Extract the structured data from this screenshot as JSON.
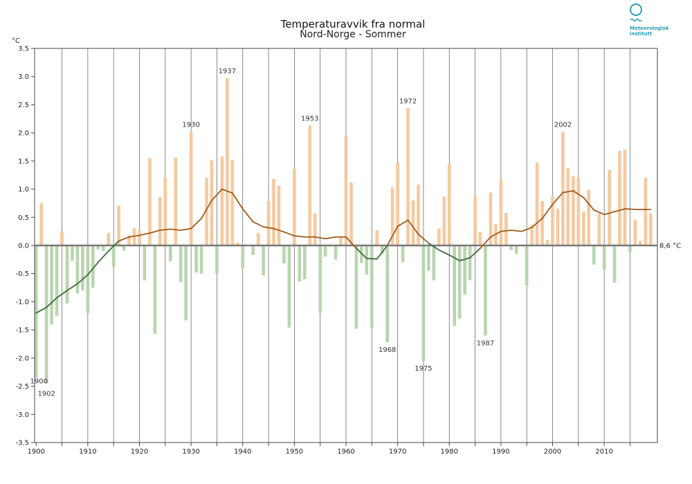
{
  "logo": {
    "line1": "Meteorologisk",
    "line2": "institutt",
    "color": "#2a9bb7"
  },
  "chart_data": {
    "type": "bar",
    "title": "Temperaturavvik fra normal",
    "subtitle": "Nord-Norge - Sommer",
    "ylabel": "°C",
    "baseline_label": "8,6 °C",
    "ylim": [
      -3.5,
      3.5
    ],
    "yticks": [
      3.5,
      3.0,
      2.5,
      2.0,
      1.5,
      1.0,
      0.5,
      0.0,
      -0.5,
      -1.0,
      -1.5,
      -2.0,
      -2.5,
      -3.0,
      -3.5
    ],
    "ytick_labels": [
      "3.5",
      "3.0",
      "2.5",
      "2.0",
      "1.5",
      "1.0",
      "0.5",
      "0.0",
      "-0.5",
      "-1.0",
      "-1.5",
      "-2.0",
      "-2.5",
      "-3.0",
      "-3.5"
    ],
    "xlim": [
      1899.7,
      2020.3
    ],
    "xticks": [
      1900,
      1910,
      1920,
      1930,
      1940,
      1950,
      1960,
      1970,
      1980,
      1990,
      2000,
      2010
    ],
    "xtick_labels": [
      "1900",
      "1910",
      "1920",
      "1930",
      "1940",
      "1950",
      "1960",
      "1970",
      "1980",
      "1990",
      "2000",
      "2010"
    ],
    "grid": "vertical every 5 years",
    "colors": {
      "positive": "#f5c9a0",
      "negative": "#b9d5b0",
      "smooth_positive": "#9e5a1a",
      "smooth_negative": "#3d6b35",
      "zero_line": "#777777"
    },
    "years": [
      1900,
      1901,
      1902,
      1903,
      1904,
      1905,
      1906,
      1907,
      1908,
      1909,
      1910,
      1911,
      1912,
      1913,
      1914,
      1915,
      1916,
      1917,
      1918,
      1919,
      1920,
      1921,
      1922,
      1923,
      1924,
      1925,
      1926,
      1927,
      1928,
      1929,
      1930,
      1931,
      1932,
      1933,
      1934,
      1935,
      1936,
      1937,
      1938,
      1939,
      1940,
      1941,
      1942,
      1943,
      1944,
      1945,
      1946,
      1947,
      1948,
      1949,
      1950,
      1951,
      1952,
      1953,
      1954,
      1955,
      1956,
      1957,
      1958,
      1959,
      1960,
      1961,
      1962,
      1963,
      1964,
      1965,
      1966,
      1967,
      1968,
      1969,
      1970,
      1971,
      1972,
      1973,
      1974,
      1975,
      1976,
      1977,
      1978,
      1979,
      1980,
      1981,
      1982,
      1983,
      1984,
      1985,
      1986,
      1987,
      1988,
      1989,
      1990,
      1991,
      1992,
      1993,
      1994,
      1995,
      1996,
      1997,
      1998,
      1999,
      2000,
      2001,
      2002,
      2003,
      2004,
      2005,
      2006,
      2007,
      2008,
      2009,
      2010,
      2011,
      2012,
      2013,
      2014,
      2015,
      2016,
      2017,
      2018,
      2019
    ],
    "values": [
      -2.35,
      0.75,
      -2.45,
      -1.4,
      -1.25,
      0.25,
      -1.03,
      -0.27,
      -0.85,
      -0.8,
      -1.2,
      -0.75,
      -0.07,
      -0.1,
      0.22,
      -0.38,
      0.71,
      -0.09,
      0.18,
      0.31,
      0.27,
      -0.62,
      1.55,
      -1.57,
      0.86,
      1.2,
      -0.28,
      1.56,
      -0.65,
      -1.33,
      2.02,
      -0.48,
      -0.5,
      1.2,
      1.51,
      -0.5,
      1.58,
      2.97,
      1.52,
      0.05,
      -0.4,
      0.0,
      -0.17,
      0.22,
      -0.53,
      0.79,
      1.18,
      1.06,
      -0.32,
      -1.46,
      1.36,
      -0.64,
      -0.6,
      2.13,
      0.57,
      -1.19,
      -0.2,
      0.0,
      -0.25,
      0.16,
      1.95,
      1.12,
      -1.48,
      -0.31,
      -0.52,
      -1.46,
      0.27,
      -0.15,
      -1.72,
      1.03,
      1.48,
      -0.3,
      2.44,
      0.8,
      1.08,
      -2.05,
      -0.45,
      -0.62,
      0.3,
      0.87,
      1.45,
      -1.43,
      -1.3,
      -0.87,
      -0.62,
      0.87,
      0.24,
      -1.6,
      0.94,
      0.38,
      1.17,
      0.58,
      -0.08,
      -0.15,
      0.0,
      -0.71,
      0.37,
      1.47,
      0.79,
      0.1,
      0.88,
      0.65,
      2.02,
      1.37,
      1.23,
      1.21,
      0.6,
      0.99,
      -0.34,
      0.57,
      -0.42,
      1.34,
      -0.66,
      1.68,
      1.7,
      -0.12,
      0.46,
      0.08,
      1.2,
      0.57
    ],
    "smooth": {
      "years": [
        1900,
        1902,
        1904,
        1906,
        1908,
        1910,
        1912,
        1914,
        1916,
        1918,
        1920,
        1922,
        1924,
        1926,
        1928,
        1930,
        1932,
        1934,
        1936,
        1938,
        1940,
        1942,
        1944,
        1946,
        1948,
        1950,
        1952,
        1954,
        1956,
        1958,
        1960,
        1962,
        1964,
        1966,
        1968,
        1970,
        1972,
        1974,
        1976,
        1978,
        1980,
        1982,
        1984,
        1986,
        1988,
        1990,
        1992,
        1994,
        1996,
        1998,
        2000,
        2002,
        2004,
        2006,
        2008,
        2010,
        2012,
        2014,
        2016,
        2019
      ],
      "values": [
        -1.2,
        -1.1,
        -0.93,
        -0.8,
        -0.68,
        -0.52,
        -0.3,
        -0.1,
        0.08,
        0.15,
        0.18,
        0.22,
        0.27,
        0.29,
        0.27,
        0.3,
        0.48,
        0.8,
        1.0,
        0.93,
        0.65,
        0.42,
        0.33,
        0.3,
        0.24,
        0.17,
        0.15,
        0.15,
        0.12,
        0.15,
        0.15,
        -0.05,
        -0.23,
        -0.24,
        0.0,
        0.34,
        0.45,
        0.2,
        0.04,
        -0.08,
        -0.17,
        -0.27,
        -0.22,
        -0.05,
        0.15,
        0.25,
        0.27,
        0.25,
        0.32,
        0.48,
        0.73,
        0.94,
        0.97,
        0.85,
        0.63,
        0.55,
        0.6,
        0.65,
        0.64,
        0.64
      ]
    },
    "annotations": [
      {
        "year": 1900,
        "value": -2.35,
        "label": "1900"
      },
      {
        "year": 1902,
        "value": -2.45,
        "label": "1902"
      },
      {
        "year": 1930,
        "value": 2.02,
        "label": "1930"
      },
      {
        "year": 1937,
        "value": 2.97,
        "label": "1937"
      },
      {
        "year": 1953,
        "value": 2.13,
        "label": "1953"
      },
      {
        "year": 1968,
        "value": -1.72,
        "label": "1968"
      },
      {
        "year": 1972,
        "value": 2.44,
        "label": "1972"
      },
      {
        "year": 1975,
        "value": -2.05,
        "label": "1975"
      },
      {
        "year": 1987,
        "value": -1.6,
        "label": "1987"
      },
      {
        "year": 2002,
        "value": 2.02,
        "label": "2002"
      }
    ]
  }
}
